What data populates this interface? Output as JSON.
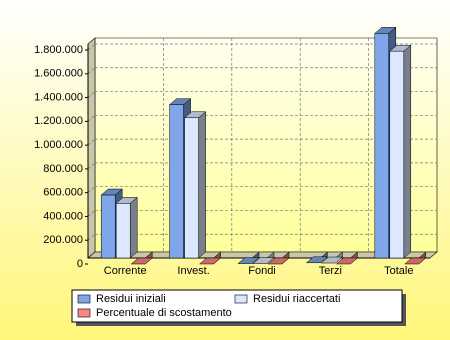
{
  "chart_data": {
    "type": "bar3d",
    "categories": [
      "Corrente",
      "Invest.",
      "Fondi",
      "Terzi",
      "Totale"
    ],
    "series": [
      {
        "name": "Residui iniziali",
        "color": "#7ea6e8",
        "values": [
          580000,
          1340000,
          3000,
          10000,
          1940000
        ]
      },
      {
        "name": "Residui riaccertati",
        "color": "#dbe8ff",
        "values": [
          510000,
          1230000,
          3000,
          8000,
          1790000
        ]
      },
      {
        "name": "Percentuale di scostamento",
        "color": "#ff8585",
        "values": [
          9,
          8,
          0,
          20,
          7
        ]
      }
    ],
    "ylim": [
      0,
      1800000
    ],
    "yticks": [
      0,
      {
        "value": 200000,
        "label": "200.000"
      },
      {
        "value": 400000,
        "label": "400.000"
      },
      {
        "value": 600000,
        "label": "600.000"
      },
      {
        "value": 800000,
        "label": "800.000"
      },
      {
        "value": 1000000,
        "label": "1.000.000"
      },
      {
        "value": 1200000,
        "label": "1.200.000"
      },
      {
        "value": 1400000,
        "label": "1.400.000"
      },
      {
        "value": 1600000,
        "label": "1.600.000"
      },
      {
        "value": 1800000,
        "label": "1.800.000"
      }
    ],
    "grid": true
  }
}
